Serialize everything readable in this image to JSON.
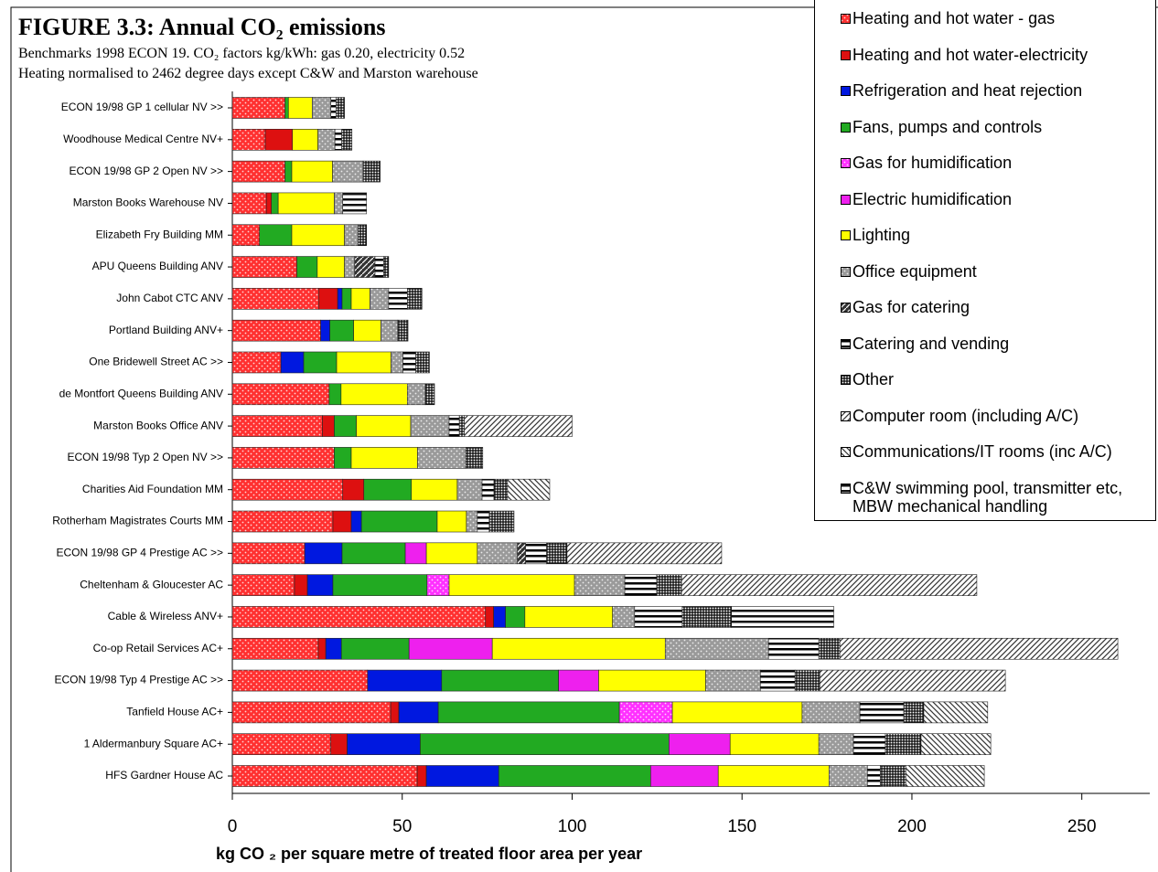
{
  "chart_data": {
    "type": "stacked_bar_horizontal",
    "title": "FIGURE 3.3:  Annual CO₂ emissions",
    "subtitle": [
      "Benchmarks 1998 ECON 19.  CO₂ factors kg/kWh: gas 0.20, electricity 0.52",
      "Heating normalised to 2462 degree days except C&W and Marston warehouse"
    ],
    "x_label": "kg CO ₂  per square metre of treated floor area per year",
    "categories": [
      "ECON 19/98 GP 1 cellular NV >>",
      "Woodhouse Medical Centre NV+",
      "ECON 19/98 GP 2 Open NV >>",
      "Marston Books Warehouse NV",
      "Elizabeth Fry Building MM",
      "APU Queens Building ANV",
      "John Cabot CTC ANV",
      "Portland Building ANV+",
      "One Bridewell Street AC >>",
      "de Montfort Queens Building ANV",
      "Marston Books Office ANV",
      "ECON 19/98 Typ 2 Open NV >>",
      "Charities Aid Foundation MM",
      "Rotherham Magistrates Courts MM",
      "ECON 19/98 GP 4 Prestige AC >>",
      "Cheltenham & Gloucester AC",
      "Cable & Wireless ANV+",
      "Co-op Retail Services AC+",
      "ECON 19/98 Typ 4 Prestige AC >>",
      "Tanfield House AC+",
      "1 Aldermanbury Square AC+",
      "HFS Gardner House AC"
    ],
    "series": [
      {
        "name": "Heating and hot water - gas",
        "color": "#ff3030",
        "pattern": "dots",
        "values": [
          15.5,
          9.7,
          15.5,
          10,
          8,
          19,
          25.5,
          26,
          14.3,
          28.5,
          26.5,
          30,
          32.5,
          29.6,
          21.3,
          18.3,
          74.5,
          25.3,
          39.8,
          46.6,
          29,
          54.4
        ]
      },
      {
        "name": "Heating and hot water-electricity",
        "color": "#dd1010",
        "pattern": "solid",
        "values": [
          0,
          8,
          0,
          1.5,
          0,
          0,
          5.5,
          0,
          0,
          0,
          3.5,
          0,
          6.2,
          5.4,
          0,
          3.8,
          2.4,
          2.2,
          0,
          2.4,
          4.8,
          2.7
        ]
      },
      {
        "name": "Refrigeration and heat rejection",
        "color": "#0018e0",
        "pattern": "solid",
        "values": [
          0,
          0,
          0,
          0,
          0,
          0,
          1.3,
          2.7,
          6.7,
          0,
          0,
          0,
          0,
          3,
          11,
          7.5,
          3.5,
          4.6,
          21.8,
          11.6,
          21.5,
          21.3
        ]
      },
      {
        "name": "Fans, pumps and controls",
        "color": "#22aa22",
        "pattern": "solid",
        "values": [
          1,
          0,
          2,
          2,
          9.5,
          6,
          2.7,
          7,
          9.7,
          3.5,
          6.5,
          5,
          14,
          22.3,
          18.6,
          27.7,
          5.7,
          19.9,
          34.4,
          53.3,
          73.2,
          44.7
        ]
      },
      {
        "name": "Gas for humidification",
        "color": "#ff30ff",
        "pattern": "dots",
        "values": [
          0,
          0,
          0,
          0,
          0,
          0,
          0,
          0,
          0,
          0,
          0,
          0,
          0,
          0,
          0,
          6.5,
          0,
          0,
          0,
          15.6,
          0,
          0
        ]
      },
      {
        "name": "Electric humidification",
        "color": "#ee20ee",
        "pattern": "solid",
        "values": [
          0,
          0,
          0,
          0,
          0,
          0,
          0,
          0,
          0,
          0,
          0,
          0,
          0,
          0,
          6.2,
          0,
          0,
          24.5,
          11.8,
          0,
          18,
          19.9
        ]
      },
      {
        "name": "Lighting",
        "color": "#ffff00",
        "pattern": "solid",
        "values": [
          7,
          7.5,
          12,
          16.5,
          15.5,
          8,
          5.5,
          8,
          16,
          19.5,
          16,
          19.5,
          13.5,
          8.6,
          15,
          36.9,
          25.8,
          50.9,
          31.5,
          38.2,
          26.1,
          32.6
        ]
      },
      {
        "name": "Office equipment",
        "color": "#9a9a9a",
        "pattern": "dots",
        "values": [
          5.5,
          5,
          9,
          2.5,
          4,
          3,
          5.5,
          5,
          3.5,
          5.3,
          11.3,
          14.2,
          7.3,
          3.2,
          11.8,
          14.8,
          6.5,
          30.4,
          16.1,
          17,
          10.2,
          11.3
        ]
      },
      {
        "name": "Gas for catering",
        "color": "#333333",
        "pattern": "hatch",
        "values": [
          0,
          0,
          0,
          0,
          0,
          6,
          0,
          0,
          0,
          0,
          0,
          0,
          0,
          0,
          2.4,
          0,
          0,
          0,
          0,
          0,
          0,
          0
        ]
      },
      {
        "name": "Catering and vending",
        "color": "#000000",
        "pattern": "hstripe",
        "values": [
          1.5,
          2,
          0,
          0,
          0,
          2.5,
          5.5,
          0,
          3.8,
          0,
          3,
          0,
          3.5,
          3.5,
          6.2,
          9.4,
          14,
          14.8,
          10.2,
          12.9,
          9.4,
          3.8
        ]
      },
      {
        "name": "Other",
        "color": "#000000",
        "pattern": "grid",
        "values": [
          2.5,
          3,
          5,
          0,
          2.5,
          1.5,
          4.3,
          3,
          4,
          2.7,
          1.5,
          5,
          4,
          7.3,
          6,
          7.3,
          14.5,
          6.2,
          7.3,
          5.9,
          10.5,
          7.5
        ]
      },
      {
        "name": "Computer room (including A/C)",
        "color": "#333333",
        "pattern": "diag",
        "values": [
          0,
          0,
          0,
          0,
          0,
          0,
          0,
          0,
          0,
          0,
          31.7,
          0,
          0,
          0,
          45.5,
          86.9,
          0,
          81.8,
          54.6,
          0,
          0,
          0
        ]
      },
      {
        "name": "Communications/IT rooms (inc A/C)",
        "color": "#333333",
        "pattern": "backdiag",
        "values": [
          0,
          0,
          0,
          0,
          0,
          0,
          0,
          0,
          0,
          0,
          0,
          0,
          12.4,
          0,
          0,
          0,
          0,
          0,
          0,
          18.8,
          20.5,
          23.1
        ]
      },
      {
        "name": "C&W swimming pool, transmitter etc, MBW mechanical handling",
        "color": "#111111",
        "pattern": "hstripe",
        "values": [
          0,
          0,
          0,
          7,
          0,
          0,
          0,
          0,
          0,
          0,
          0,
          0,
          0,
          0,
          0,
          0,
          30.1,
          0,
          0,
          0,
          0,
          0
        ]
      }
    ],
    "xlim": [
      0,
      270
    ],
    "xticks": [
      0,
      50,
      100,
      150,
      200,
      250
    ]
  }
}
